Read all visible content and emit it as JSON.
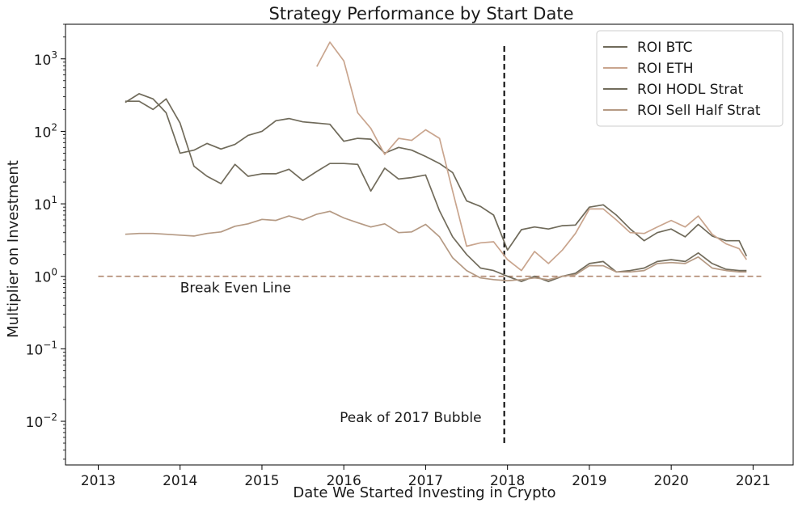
{
  "chart_data": {
    "type": "line",
    "title": "Strategy Performance by Start Date",
    "xlabel": "Date We Started Investing in Crypto",
    "ylabel": "Multiplier on Investment",
    "yscale": "log",
    "xlim": [
      2012.6,
      2021.5
    ],
    "ylim": [
      0.0025,
      3000
    ],
    "x_ticks": [
      {
        "value": 2013,
        "label": "2013"
      },
      {
        "value": 2014,
        "label": "2014"
      },
      {
        "value": 2015,
        "label": "2015"
      },
      {
        "value": 2016,
        "label": "2016"
      },
      {
        "value": 2017,
        "label": "2017"
      },
      {
        "value": 2018,
        "label": "2018"
      },
      {
        "value": 2019,
        "label": "2019"
      },
      {
        "value": 2020,
        "label": "2020"
      },
      {
        "value": 2021,
        "label": "2021"
      }
    ],
    "y_ticks": [
      {
        "value": 0.01,
        "base": "10",
        "exp": "−2"
      },
      {
        "value": 0.1,
        "base": "10",
        "exp": "−1"
      },
      {
        "value": 1,
        "base": "10",
        "exp": "0"
      },
      {
        "value": 10,
        "base": "10",
        "exp": "1"
      },
      {
        "value": 100,
        "base": "10",
        "exp": "2"
      },
      {
        "value": 1000,
        "base": "10",
        "exp": "3"
      }
    ],
    "legend_position": "top-right",
    "grid": false,
    "series": [
      {
        "name": "ROI BTC",
        "color": "#6f6a5a",
        "points": [
          [
            2013.33,
            250
          ],
          [
            2013.5,
            330
          ],
          [
            2013.67,
            280
          ],
          [
            2013.83,
            180
          ],
          [
            2014.0,
            50
          ],
          [
            2014.17,
            55
          ],
          [
            2014.33,
            68
          ],
          [
            2014.5,
            57
          ],
          [
            2014.67,
            66
          ],
          [
            2014.83,
            88
          ],
          [
            2015.0,
            100
          ],
          [
            2015.17,
            140
          ],
          [
            2015.33,
            150
          ],
          [
            2015.5,
            135
          ],
          [
            2015.67,
            130
          ],
          [
            2015.83,
            125
          ],
          [
            2016.0,
            73
          ],
          [
            2016.17,
            80
          ],
          [
            2016.33,
            78
          ],
          [
            2016.5,
            50
          ],
          [
            2016.67,
            60
          ],
          [
            2016.83,
            55
          ],
          [
            2017.0,
            45
          ],
          [
            2017.17,
            36
          ],
          [
            2017.33,
            27
          ],
          [
            2017.5,
            11
          ],
          [
            2017.67,
            9.2
          ],
          [
            2017.83,
            7
          ],
          [
            2018.0,
            2.3
          ],
          [
            2018.17,
            4.4
          ],
          [
            2018.33,
            4.8
          ],
          [
            2018.5,
            4.5
          ],
          [
            2018.67,
            5.0
          ],
          [
            2018.83,
            5.1
          ],
          [
            2019.0,
            9.0
          ],
          [
            2019.17,
            9.7
          ],
          [
            2019.33,
            7.0
          ],
          [
            2019.5,
            4.5
          ],
          [
            2019.67,
            3.1
          ],
          [
            2019.83,
            4.0
          ],
          [
            2020.0,
            4.5
          ],
          [
            2020.17,
            3.5
          ],
          [
            2020.33,
            5.2
          ],
          [
            2020.5,
            3.6
          ],
          [
            2020.67,
            3.1
          ],
          [
            2020.83,
            3.1
          ],
          [
            2020.92,
            1.9
          ]
        ]
      },
      {
        "name": "ROI ETH",
        "color": "#c9a58e",
        "points": [
          [
            2015.67,
            780
          ],
          [
            2015.83,
            1700
          ],
          [
            2016.0,
            940
          ],
          [
            2016.17,
            180
          ],
          [
            2016.33,
            110
          ],
          [
            2016.5,
            48
          ],
          [
            2016.67,
            80
          ],
          [
            2016.83,
            75
          ],
          [
            2017.0,
            105
          ],
          [
            2017.17,
            80
          ],
          [
            2017.33,
            15
          ],
          [
            2017.5,
            2.6
          ],
          [
            2017.67,
            2.9
          ],
          [
            2017.83,
            3.0
          ],
          [
            2018.0,
            1.7
          ],
          [
            2018.17,
            1.2
          ],
          [
            2018.33,
            2.2
          ],
          [
            2018.5,
            1.5
          ],
          [
            2018.67,
            2.3
          ],
          [
            2018.83,
            3.9
          ],
          [
            2019.0,
            8.5
          ],
          [
            2019.17,
            8.5
          ],
          [
            2019.33,
            6.0
          ],
          [
            2019.5,
            4.0
          ],
          [
            2019.67,
            3.9
          ],
          [
            2019.83,
            4.8
          ],
          [
            2020.0,
            5.9
          ],
          [
            2020.17,
            4.8
          ],
          [
            2020.33,
            6.8
          ],
          [
            2020.5,
            3.8
          ],
          [
            2020.67,
            2.8
          ],
          [
            2020.83,
            2.4
          ],
          [
            2020.92,
            1.7
          ]
        ]
      },
      {
        "name": "ROI HODL Strat",
        "color": "#726c5c",
        "points": [
          [
            2013.33,
            260
          ],
          [
            2013.5,
            260
          ],
          [
            2013.67,
            200
          ],
          [
            2013.83,
            280
          ],
          [
            2014.0,
            130
          ],
          [
            2014.17,
            33
          ],
          [
            2014.33,
            24
          ],
          [
            2014.5,
            19
          ],
          [
            2014.67,
            35
          ],
          [
            2014.83,
            24
          ],
          [
            2015.0,
            26
          ],
          [
            2015.17,
            26
          ],
          [
            2015.33,
            30
          ],
          [
            2015.5,
            21
          ],
          [
            2015.67,
            28
          ],
          [
            2015.83,
            36
          ],
          [
            2016.0,
            36
          ],
          [
            2016.17,
            35
          ],
          [
            2016.33,
            15
          ],
          [
            2016.5,
            31
          ],
          [
            2016.67,
            22
          ],
          [
            2016.83,
            23
          ],
          [
            2017.0,
            25
          ],
          [
            2017.17,
            8
          ],
          [
            2017.33,
            3.5
          ],
          [
            2017.5,
            2.0
          ],
          [
            2017.67,
            1.3
          ],
          [
            2017.83,
            1.2
          ],
          [
            2018.0,
            1.0
          ],
          [
            2018.17,
            0.85
          ],
          [
            2018.33,
            1.0
          ],
          [
            2018.5,
            0.85
          ],
          [
            2018.67,
            1.0
          ],
          [
            2018.83,
            1.1
          ],
          [
            2019.0,
            1.5
          ],
          [
            2019.17,
            1.6
          ],
          [
            2019.33,
            1.15
          ],
          [
            2019.5,
            1.2
          ],
          [
            2019.67,
            1.3
          ],
          [
            2019.83,
            1.6
          ],
          [
            2020.0,
            1.7
          ],
          [
            2020.17,
            1.6
          ],
          [
            2020.33,
            2.1
          ],
          [
            2020.5,
            1.5
          ],
          [
            2020.67,
            1.25
          ],
          [
            2020.83,
            1.2
          ],
          [
            2020.92,
            1.2
          ]
        ]
      },
      {
        "name": "ROI Sell Half Strat",
        "color": "#b59a84",
        "points": [
          [
            2013.33,
            3.8
          ],
          [
            2013.5,
            3.9
          ],
          [
            2013.67,
            3.9
          ],
          [
            2013.83,
            3.8
          ],
          [
            2014.0,
            3.7
          ],
          [
            2014.17,
            3.6
          ],
          [
            2014.33,
            3.9
          ],
          [
            2014.5,
            4.1
          ],
          [
            2014.67,
            4.9
          ],
          [
            2014.83,
            5.3
          ],
          [
            2015.0,
            6.1
          ],
          [
            2015.17,
            5.9
          ],
          [
            2015.33,
            6.8
          ],
          [
            2015.5,
            6.0
          ],
          [
            2015.67,
            7.2
          ],
          [
            2015.83,
            7.9
          ],
          [
            2016.0,
            6.4
          ],
          [
            2016.17,
            5.5
          ],
          [
            2016.33,
            4.8
          ],
          [
            2016.5,
            5.3
          ],
          [
            2016.67,
            4.0
          ],
          [
            2016.83,
            4.1
          ],
          [
            2017.0,
            5.2
          ],
          [
            2017.17,
            3.5
          ],
          [
            2017.33,
            1.8
          ],
          [
            2017.5,
            1.2
          ],
          [
            2017.67,
            0.95
          ],
          [
            2017.83,
            0.9
          ],
          [
            2018.0,
            0.87
          ],
          [
            2018.17,
            0.9
          ],
          [
            2018.33,
            0.95
          ],
          [
            2018.5,
            0.9
          ],
          [
            2018.67,
            1.0
          ],
          [
            2018.83,
            1.05
          ],
          [
            2019.0,
            1.4
          ],
          [
            2019.17,
            1.4
          ],
          [
            2019.33,
            1.15
          ],
          [
            2019.5,
            1.15
          ],
          [
            2019.67,
            1.2
          ],
          [
            2019.83,
            1.5
          ],
          [
            2020.0,
            1.55
          ],
          [
            2020.17,
            1.5
          ],
          [
            2020.33,
            1.85
          ],
          [
            2020.5,
            1.3
          ],
          [
            2020.67,
            1.2
          ],
          [
            2020.83,
            1.15
          ],
          [
            2020.92,
            1.15
          ]
        ]
      }
    ],
    "reference_lines": [
      {
        "name": "break-even-line",
        "orientation": "horizontal",
        "value": 1,
        "from": 2013,
        "to": 2021.1,
        "color": "#b08870",
        "dash": "dashed"
      },
      {
        "name": "bubble-peak-line",
        "orientation": "vertical",
        "value": 2017.96,
        "from": 0.005,
        "to": 1500,
        "color": "#000000",
        "dash": "dashed"
      }
    ],
    "annotations": [
      {
        "name": "break-even-annotation",
        "text": "Break Even Line",
        "x": 2014.0,
        "y": 0.6
      },
      {
        "name": "bubble-peak-annotation",
        "text": "Peak of 2017 Bubble",
        "x": 2015.95,
        "y": 0.0098
      }
    ]
  }
}
